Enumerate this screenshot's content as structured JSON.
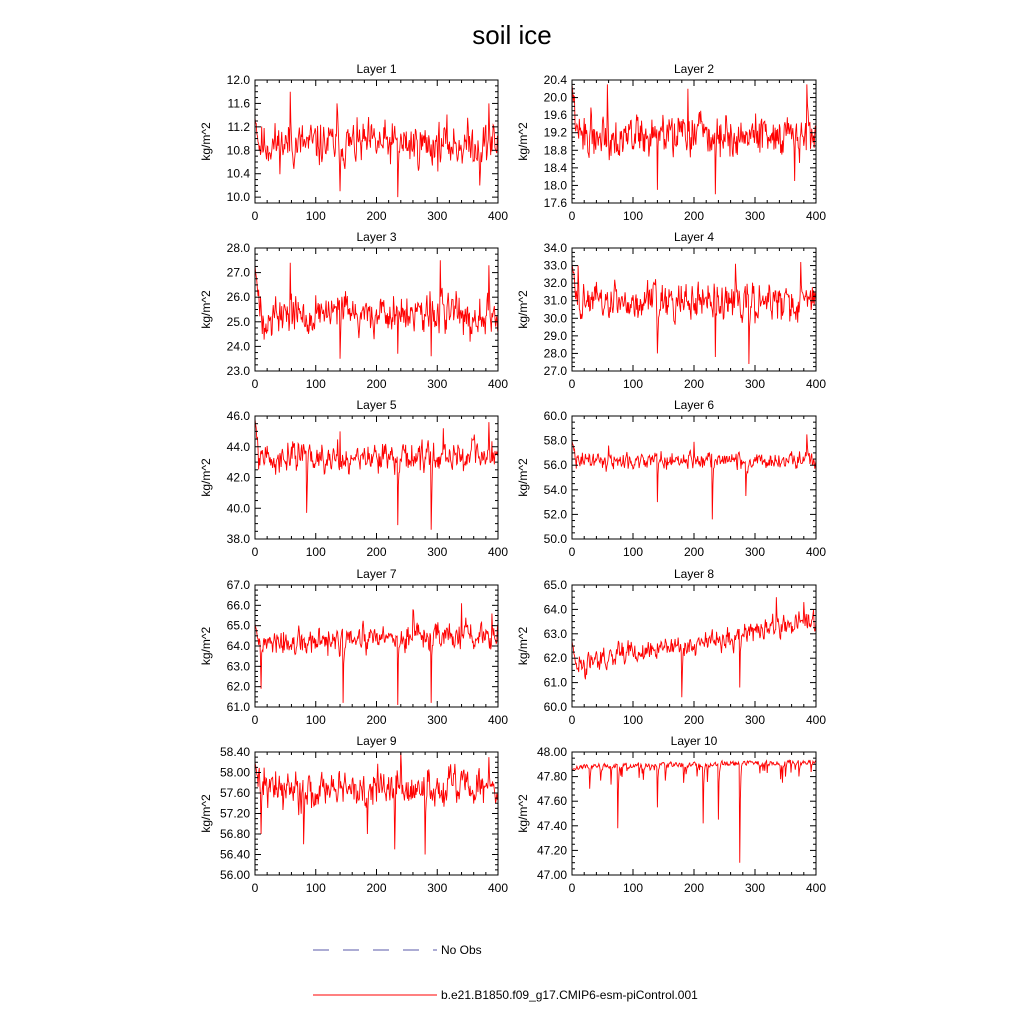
{
  "title": "soil ice",
  "legend": [
    {
      "label": "No Obs",
      "style": "dashed",
      "color": "#5a5aa8"
    },
    {
      "label": "b.e21.B1850.f09_g17.CMIP6-esm-piControl.001",
      "style": "solid",
      "color": "#ff0000"
    }
  ],
  "chart_data": [
    {
      "type": "line",
      "title": "Layer 1",
      "ylabel": "kg/m^2",
      "xlim": [
        0,
        400
      ],
      "ylim": [
        9.9,
        12.0
      ],
      "xticks": [
        0,
        100,
        200,
        300,
        400
      ],
      "yticks": [
        10.0,
        10.4,
        10.8,
        11.2,
        11.6,
        12.0
      ],
      "ytick_labels": [
        "10.0",
        "10.4",
        "10.8",
        "11.2",
        "11.6",
        "12.0"
      ],
      "x_ticks_labels": [
        "0",
        "100",
        "200",
        "300",
        "400"
      ],
      "series": [
        {
          "name": "b.e21.B1850.f09_g17.CMIP6-esm-piControl.001",
          "color": "#ff0000",
          "start": 11.35,
          "mean": 10.9,
          "spread": 0.5,
          "dips": [
            [
              140,
              10.1
            ],
            [
              235,
              10.0
            ],
            [
              370,
              10.2
            ]
          ],
          "peaks": [
            [
              58,
              11.8
            ],
            [
              135,
              11.6
            ],
            [
              385,
              11.6
            ]
          ],
          "seed": 11,
          "drift": 0
        }
      ]
    },
    {
      "type": "line",
      "title": "Layer 2",
      "ylabel": "kg/m^2",
      "xlim": [
        0,
        400
      ],
      "ylim": [
        17.6,
        20.4
      ],
      "xticks": [
        0,
        100,
        200,
        300,
        400
      ],
      "yticks": [
        17.6,
        18.0,
        18.4,
        18.8,
        19.2,
        19.6,
        20.0,
        20.4
      ],
      "ytick_labels": [
        "17.6",
        "18.0",
        "18.4",
        "18.8",
        "19.2",
        "19.6",
        "20.0",
        "20.4"
      ],
      "x_ticks_labels": [
        "0",
        "100",
        "200",
        "300",
        "400"
      ],
      "series": [
        {
          "name": "b.e21.B1850.f09_g17.CMIP6-esm-piControl.001",
          "color": "#ff0000",
          "start": 20.3,
          "mean": 19.15,
          "spread": 0.65,
          "dips": [
            [
              140,
              17.9
            ],
            [
              235,
              17.8
            ],
            [
              365,
              18.1
            ]
          ],
          "peaks": [
            [
              58,
              20.3
            ],
            [
              190,
              20.2
            ],
            [
              385,
              20.3
            ]
          ],
          "seed": 22,
          "drift": 0
        }
      ]
    },
    {
      "type": "line",
      "title": "Layer 3",
      "ylabel": "kg/m^2",
      "xlim": [
        0,
        400
      ],
      "ylim": [
        23.0,
        28.0
      ],
      "xticks": [
        0,
        100,
        200,
        300,
        400
      ],
      "yticks": [
        23.0,
        24.0,
        25.0,
        26.0,
        27.0,
        28.0
      ],
      "ytick_labels": [
        "23.0",
        "24.0",
        "25.0",
        "26.0",
        "27.0",
        "28.0"
      ],
      "x_ticks_labels": [
        "0",
        "100",
        "200",
        "300",
        "400"
      ],
      "series": [
        {
          "name": "b.e21.B1850.f09_g17.CMIP6-esm-piControl.001",
          "color": "#ff0000",
          "start": 27.3,
          "mean": 25.3,
          "spread": 1.1,
          "dips": [
            [
              140,
              23.5
            ],
            [
              235,
              23.7
            ],
            [
              290,
              23.6
            ]
          ],
          "peaks": [
            [
              58,
              27.4
            ],
            [
              305,
              27.5
            ],
            [
              385,
              27.3
            ]
          ],
          "seed": 33,
          "drift": 0
        }
      ]
    },
    {
      "type": "line",
      "title": "Layer 4",
      "ylabel": "kg/m^2",
      "xlim": [
        0,
        400
      ],
      "ylim": [
        27.0,
        34.0
      ],
      "xticks": [
        0,
        100,
        200,
        300,
        400
      ],
      "yticks": [
        27.0,
        28.0,
        29.0,
        30.0,
        31.0,
        32.0,
        33.0,
        34.0
      ],
      "ytick_labels": [
        "27.0",
        "28.0",
        "29.0",
        "30.0",
        "31.0",
        "32.0",
        "33.0",
        "34.0"
      ],
      "x_ticks_labels": [
        "0",
        "100",
        "200",
        "300",
        "400"
      ],
      "series": [
        {
          "name": "b.e21.B1850.f09_g17.CMIP6-esm-piControl.001",
          "color": "#ff0000",
          "start": 33.1,
          "mean": 30.9,
          "spread": 1.4,
          "dips": [
            [
              140,
              28.0
            ],
            [
              235,
              27.8
            ],
            [
              290,
              27.4
            ]
          ],
          "peaks": [
            [
              10,
              33.0
            ],
            [
              375,
              33.2
            ],
            [
              268,
              33.1
            ]
          ],
          "seed": 44,
          "drift": 0
        }
      ]
    },
    {
      "type": "line",
      "title": "Layer 5",
      "ylabel": "kg/m^2",
      "xlim": [
        0,
        400
      ],
      "ylim": [
        38.0,
        46.0
      ],
      "xticks": [
        0,
        100,
        200,
        300,
        400
      ],
      "yticks": [
        38.0,
        40.0,
        42.0,
        44.0,
        46.0
      ],
      "ytick_labels": [
        "38.0",
        "40.0",
        "42.0",
        "44.0",
        "46.0"
      ],
      "x_ticks_labels": [
        "0",
        "100",
        "200",
        "300",
        "400"
      ],
      "series": [
        {
          "name": "b.e21.B1850.f09_g17.CMIP6-esm-piControl.001",
          "color": "#ff0000",
          "start": 45.8,
          "mean": 43.3,
          "spread": 1.3,
          "dips": [
            [
              85,
              39.7
            ],
            [
              235,
              38.9
            ],
            [
              290,
              38.6
            ]
          ],
          "peaks": [
            [
              385,
              45.6
            ],
            [
              310,
              45.2
            ],
            [
              140,
              45.0
            ]
          ],
          "seed": 55,
          "drift": 0
        }
      ]
    },
    {
      "type": "line",
      "title": "Layer 6",
      "ylabel": "kg/m^2",
      "xlim": [
        0,
        400
      ],
      "ylim": [
        50.0,
        60.0
      ],
      "xticks": [
        0,
        100,
        200,
        300,
        400
      ],
      "yticks": [
        50.0,
        52.0,
        54.0,
        56.0,
        58.0,
        60.0
      ],
      "ytick_labels": [
        "50.0",
        "52.0",
        "54.0",
        "56.0",
        "58.0",
        "60.0"
      ],
      "x_ticks_labels": [
        "0",
        "100",
        "200",
        "300",
        "400"
      ],
      "series": [
        {
          "name": "b.e21.B1850.f09_g17.CMIP6-esm-piControl.001",
          "color": "#ff0000",
          "start": 58.0,
          "mean": 56.4,
          "spread": 0.9,
          "dips": [
            [
              140,
              53.0
            ],
            [
              230,
              51.6
            ],
            [
              285,
              53.5
            ]
          ],
          "peaks": [
            [
              385,
              58.5
            ],
            [
              200,
              57.9
            ],
            [
              60,
              57.6
            ]
          ],
          "seed": 66,
          "drift": 0
        }
      ]
    },
    {
      "type": "line",
      "title": "Layer 7",
      "ylabel": "kg/m^2",
      "xlim": [
        0,
        400
      ],
      "ylim": [
        61.0,
        67.0
      ],
      "xticks": [
        0,
        100,
        200,
        300,
        400
      ],
      "yticks": [
        61.0,
        62.0,
        63.0,
        64.0,
        65.0,
        66.0,
        67.0
      ],
      "ytick_labels": [
        "61.0",
        "62.0",
        "63.0",
        "64.0",
        "65.0",
        "66.0",
        "67.0"
      ],
      "x_ticks_labels": [
        "0",
        "100",
        "200",
        "300",
        "400"
      ],
      "series": [
        {
          "name": "b.e21.B1850.f09_g17.CMIP6-esm-piControl.001",
          "color": "#ff0000",
          "start": 65.1,
          "mean": 64.0,
          "spread": 0.9,
          "dips": [
            [
              10,
              61.9
            ],
            [
              145,
              61.2
            ],
            [
              235,
              61.1
            ],
            [
              290,
              61.2
            ]
          ],
          "peaks": [
            [
              340,
              66.1
            ],
            [
              260,
              65.8
            ],
            [
              390,
              65.6
            ]
          ],
          "seed": 77,
          "drift": 0.6
        }
      ]
    },
    {
      "type": "line",
      "title": "Layer 8",
      "ylabel": "kg/m^2",
      "xlim": [
        0,
        400
      ],
      "ylim": [
        60.0,
        65.0
      ],
      "xticks": [
        0,
        100,
        200,
        300,
        400
      ],
      "yticks": [
        60.0,
        61.0,
        62.0,
        63.0,
        64.0,
        65.0
      ],
      "ytick_labels": [
        "60.0",
        "61.0",
        "62.0",
        "63.0",
        "64.0",
        "65.0"
      ],
      "x_ticks_labels": [
        "0",
        "100",
        "200",
        "300",
        "400"
      ],
      "series": [
        {
          "name": "b.e21.B1850.f09_g17.CMIP6-esm-piControl.001",
          "color": "#ff0000",
          "start": 62.7,
          "mean": 61.7,
          "spread": 0.6,
          "dips": [
            [
              180,
              60.4
            ],
            [
              275,
              60.8
            ]
          ],
          "peaks": [
            [
              335,
              64.5
            ],
            [
              380,
              64.3
            ]
          ],
          "seed": 88,
          "drift": 1.8
        }
      ]
    },
    {
      "type": "line",
      "title": "Layer 9",
      "ylabel": "kg/m^2",
      "xlim": [
        0,
        400
      ],
      "ylim": [
        56.0,
        58.4
      ],
      "xticks": [
        0,
        100,
        200,
        300,
        400
      ],
      "yticks": [
        56.0,
        56.4,
        56.8,
        57.2,
        57.6,
        58.0,
        58.4
      ],
      "ytick_labels": [
        "56.00",
        "56.40",
        "56.80",
        "57.20",
        "57.60",
        "58.00",
        "58.40"
      ],
      "x_ticks_labels": [
        "0",
        "100",
        "200",
        "300",
        "400"
      ],
      "series": [
        {
          "name": "b.e21.B1850.f09_g17.CMIP6-esm-piControl.001",
          "color": "#ff0000",
          "start": 58.2,
          "mean": 57.7,
          "spread": 0.5,
          "dips": [
            [
              10,
              56.8
            ],
            [
              80,
              56.6
            ],
            [
              185,
              56.8
            ],
            [
              230,
              56.5
            ],
            [
              280,
              56.4
            ]
          ],
          "peaks": [
            [
              240,
              58.4
            ],
            [
              385,
              58.3
            ]
          ],
          "seed": 99,
          "drift": 0
        }
      ]
    },
    {
      "type": "line",
      "title": "Layer 10",
      "ylabel": "kg/m^2",
      "xlim": [
        0,
        400
      ],
      "ylim": [
        47.0,
        48.0
      ],
      "xticks": [
        0,
        100,
        200,
        300,
        400
      ],
      "yticks": [
        47.0,
        47.2,
        47.4,
        47.6,
        47.8,
        48.0
      ],
      "ytick_labels": [
        "47.00",
        "47.20",
        "47.40",
        "47.60",
        "47.80",
        "48.00"
      ],
      "x_ticks_labels": [
        "0",
        "100",
        "200",
        "300",
        "400"
      ],
      "series": [
        {
          "name": "b.e21.B1850.f09_g17.CMIP6-esm-piControl.001",
          "color": "#ff0000",
          "start": 47.85,
          "mean": 47.88,
          "spread": 0.03,
          "dips": [
            [
              75,
              47.38
            ],
            [
              275,
              47.1
            ],
            [
              215,
              47.42
            ],
            [
              240,
              47.45
            ],
            [
              140,
              47.55
            ]
          ],
          "peaks": [],
          "seed": 111,
          "drift": 0.04,
          "one_sided": true
        }
      ]
    }
  ]
}
